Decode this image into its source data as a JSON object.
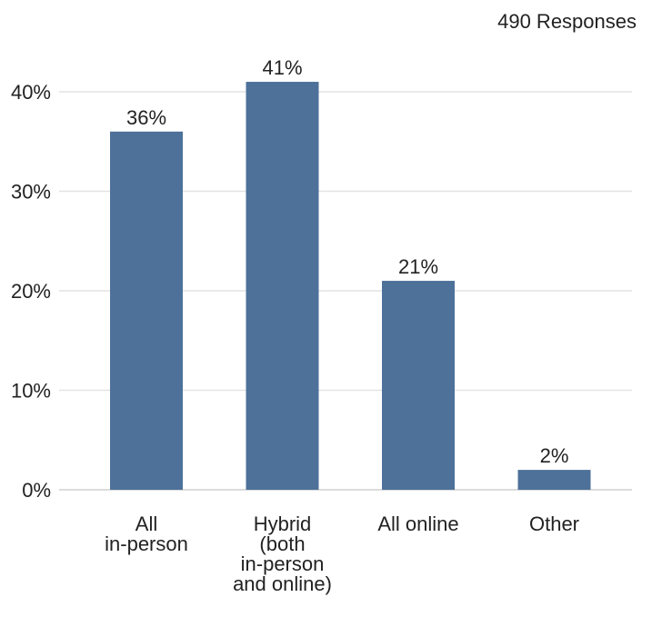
{
  "header": {
    "responses_label": "490 Responses"
  },
  "colors": {
    "bar": "#4d7199",
    "grid": "#e4e4e4",
    "text": "#222222"
  },
  "chart_data": {
    "type": "bar",
    "title": "",
    "xlabel": "",
    "ylabel": "",
    "ylim": [
      0,
      45
    ],
    "y_ticks": [
      {
        "value": 0,
        "label": "0%"
      },
      {
        "value": 10,
        "label": "10%"
      },
      {
        "value": 20,
        "label": "20%"
      },
      {
        "value": 30,
        "label": "30%"
      },
      {
        "value": 40,
        "label": "40%"
      }
    ],
    "categories": [
      [
        "All",
        "in-person"
      ],
      [
        "Hybrid",
        "(both",
        "in-person",
        "and online)"
      ],
      [
        "All online"
      ],
      [
        "Other"
      ]
    ],
    "values": [
      36,
      41,
      21,
      2
    ],
    "data_labels": [
      "36%",
      "41%",
      "21%",
      "2%"
    ],
    "grid": true,
    "legend": "none"
  }
}
